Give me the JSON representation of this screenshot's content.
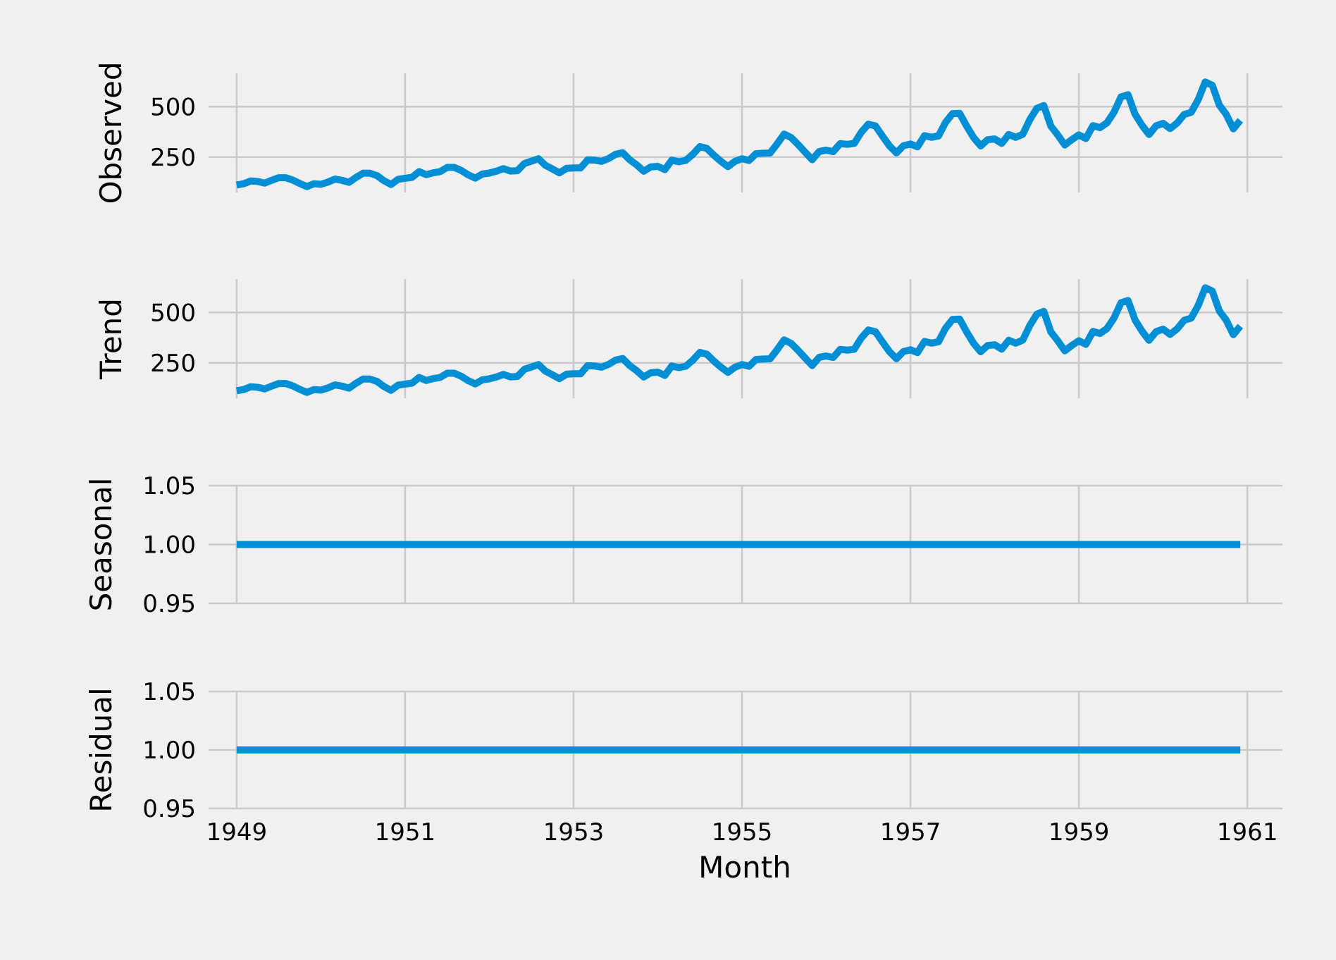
{
  "chart_data": [
    {
      "type": "line",
      "ylabel": "Observed",
      "ylim": [
        75,
        665
      ],
      "yticks": [
        250,
        500
      ],
      "ytick_labels": [
        "250",
        "500"
      ],
      "x_start": "1949-01",
      "x_frequency": "monthly",
      "series": [
        {
          "values": [
            112,
            118,
            132,
            129,
            121,
            135,
            148,
            148,
            136,
            119,
            104,
            118,
            115,
            126,
            141,
            135,
            125,
            149,
            170,
            170,
            158,
            133,
            114,
            140,
            145,
            150,
            178,
            163,
            172,
            178,
            199,
            199,
            184,
            162,
            146,
            166,
            171,
            180,
            193,
            181,
            183,
            218,
            230,
            242,
            209,
            191,
            172,
            194,
            196,
            196,
            236,
            235,
            229,
            243,
            264,
            272,
            237,
            211,
            180,
            201,
            204,
            188,
            235,
            227,
            234,
            264,
            302,
            293,
            259,
            229,
            203,
            229,
            242,
            233,
            267,
            269,
            270,
            315,
            364,
            347,
            312,
            274,
            237,
            278,
            284,
            277,
            317,
            313,
            318,
            374,
            413,
            405,
            355,
            306,
            271,
            306,
            315,
            301,
            356,
            348,
            355,
            422,
            465,
            467,
            404,
            347,
            305,
            336,
            340,
            318,
            362,
            348,
            363,
            435,
            491,
            505,
            404,
            359,
            310,
            337,
            360,
            342,
            406,
            396,
            420,
            472,
            548,
            559,
            463,
            407,
            362,
            405,
            417,
            391,
            419,
            461,
            472,
            535,
            622,
            606,
            508,
            461,
            390,
            432
          ]
        }
      ]
    },
    {
      "type": "line",
      "ylabel": "Trend",
      "ylim": [
        75,
        665
      ],
      "yticks": [
        250,
        500
      ],
      "ytick_labels": [
        "250",
        "500"
      ],
      "x_start": "1949-01",
      "x_frequency": "monthly",
      "series": [
        {
          "values": [
            112,
            118,
            132,
            129,
            121,
            135,
            148,
            148,
            136,
            119,
            104,
            118,
            115,
            126,
            141,
            135,
            125,
            149,
            170,
            170,
            158,
            133,
            114,
            140,
            145,
            150,
            178,
            163,
            172,
            178,
            199,
            199,
            184,
            162,
            146,
            166,
            171,
            180,
            193,
            181,
            183,
            218,
            230,
            242,
            209,
            191,
            172,
            194,
            196,
            196,
            236,
            235,
            229,
            243,
            264,
            272,
            237,
            211,
            180,
            201,
            204,
            188,
            235,
            227,
            234,
            264,
            302,
            293,
            259,
            229,
            203,
            229,
            242,
            233,
            267,
            269,
            270,
            315,
            364,
            347,
            312,
            274,
            237,
            278,
            284,
            277,
            317,
            313,
            318,
            374,
            413,
            405,
            355,
            306,
            271,
            306,
            315,
            301,
            356,
            348,
            355,
            422,
            465,
            467,
            404,
            347,
            305,
            336,
            340,
            318,
            362,
            348,
            363,
            435,
            491,
            505,
            404,
            359,
            310,
            337,
            360,
            342,
            406,
            396,
            420,
            472,
            548,
            559,
            463,
            407,
            362,
            405,
            417,
            391,
            419,
            461,
            472,
            535,
            622,
            606,
            508,
            461,
            390,
            432
          ]
        }
      ]
    },
    {
      "type": "line",
      "ylabel": "Seasonal",
      "ylim": [
        0.95,
        1.05
      ],
      "yticks": [
        0.95,
        1.0,
        1.05
      ],
      "ytick_labels": [
        "0.95",
        "1.00",
        "1.05"
      ],
      "x_start": "1949-01",
      "x_frequency": "monthly",
      "series": [
        {
          "constant": 1.0,
          "count": 144
        }
      ]
    },
    {
      "type": "line",
      "ylabel": "Residual",
      "ylim": [
        0.95,
        1.05
      ],
      "yticks": [
        0.95,
        1.0,
        1.05
      ],
      "ytick_labels": [
        "0.95",
        "1.00",
        "1.05"
      ],
      "x_start": "1949-01",
      "x_frequency": "monthly",
      "series": [
        {
          "constant": 1.0,
          "count": 144
        }
      ]
    }
  ],
  "x_axis": {
    "xlabel": "Month",
    "xlim": [
      "1948-09",
      "1961-06"
    ],
    "xticks": [
      "1949-01",
      "1951-01",
      "1953-01",
      "1955-01",
      "1957-01",
      "1959-01",
      "1961-01"
    ],
    "xtick_labels": [
      "1949",
      "1951",
      "1953",
      "1955",
      "1957",
      "1959",
      "1961"
    ]
  },
  "style": {
    "line_color": "#008fd5",
    "grid_color": "#cbcbcb",
    "background": "#f0f0f0"
  }
}
